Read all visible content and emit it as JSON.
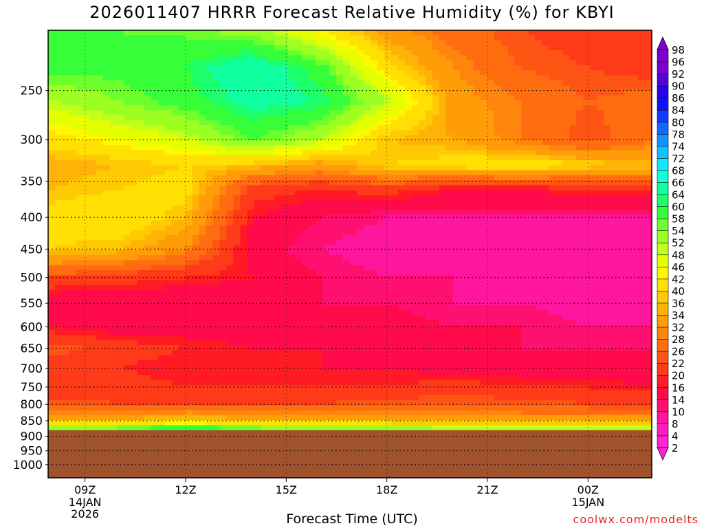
{
  "page": {
    "title": "2026011407 HRRR Forecast Relative Humidity (%) for KBYI",
    "credit": "coolwx.com/modelts"
  },
  "colors": {
    "ground": "#a0522d",
    "scale": [
      "#ff22d8",
      "#ff1cbc",
      "#ff169e",
      "#ff1070",
      "#ff0a4a",
      "#ff1a24",
      "#ff3a18",
      "#ff5514",
      "#ff6d10",
      "#ff850c",
      "#ff9c08",
      "#ffb306",
      "#ffca04",
      "#ffe002",
      "#fff800",
      "#e6ff00",
      "#c2ff1a",
      "#9cff22",
      "#6cff2c",
      "#36ff3a",
      "#1cff6a",
      "#10ffa0",
      "#10ffd8",
      "#10e8ff",
      "#10c0ff",
      "#1094ff",
      "#1068ff",
      "#103cff",
      "#1010ff",
      "#2a00ee",
      "#5400d8",
      "#7e00d0"
    ]
  },
  "chart_data": {
    "type": "heatmap",
    "title": "2026011407 HRRR Forecast Relative Humidity (%) for KBYI",
    "xlabel": "Forecast Time (UTC)",
    "ylabel": "",
    "x_ticks": [
      {
        "value": 9,
        "label": "09Z",
        "sub": [
          "14JAN",
          "2026"
        ]
      },
      {
        "value": 12,
        "label": "12Z",
        "sub": []
      },
      {
        "value": 15,
        "label": "15Z",
        "sub": []
      },
      {
        "value": 18,
        "label": "18Z",
        "sub": []
      },
      {
        "value": 21,
        "label": "21Z",
        "sub": []
      },
      {
        "value": 24,
        "label": "00Z",
        "sub": [
          "15JAN"
        ]
      }
    ],
    "xlim": [
      7.9,
      25.9
    ],
    "y_ticks": [
      250,
      300,
      350,
      400,
      450,
      500,
      550,
      600,
      650,
      700,
      750,
      800,
      850,
      900,
      950,
      1000
    ],
    "ylim": [
      1050,
      200
    ],
    "y_scale": "log",
    "grid": true,
    "surface_pressure": 880,
    "colorbar": {
      "labels": [
        2,
        4,
        8,
        10,
        14,
        16,
        20,
        22,
        26,
        28,
        32,
        34,
        36,
        40,
        42,
        46,
        48,
        52,
        54,
        58,
        60,
        64,
        66,
        68,
        72,
        74,
        78,
        80,
        84,
        86,
        90,
        92,
        96,
        98
      ],
      "extend": "both"
    },
    "times": [
      8,
      10,
      12,
      14,
      16,
      18,
      20,
      22,
      24,
      26
    ],
    "levels": [
      200,
      230,
      260,
      300,
      330,
      360,
      400,
      450,
      500,
      550,
      600,
      650,
      700,
      750,
      800,
      850,
      870,
      880
    ],
    "values": [
      [
        54,
        54,
        53,
        50,
        40,
        30,
        24,
        20,
        18,
        17
      ],
      [
        56,
        55,
        58,
        64,
        56,
        38,
        28,
        22,
        20,
        18
      ],
      [
        48,
        52,
        56,
        62,
        60,
        48,
        30,
        26,
        22,
        24
      ],
      [
        38,
        42,
        46,
        54,
        48,
        34,
        32,
        26,
        20,
        26
      ],
      [
        32,
        34,
        36,
        34,
        30,
        36,
        38,
        40,
        36,
        34
      ],
      [
        34,
        36,
        38,
        18,
        16,
        18,
        14,
        14,
        16,
        16
      ],
      [
        38,
        40,
        34,
        14,
        10,
        8,
        8,
        8,
        8,
        8
      ],
      [
        36,
        34,
        28,
        12,
        8,
        6,
        6,
        5,
        4,
        4
      ],
      [
        20,
        18,
        16,
        14,
        10,
        8,
        8,
        6,
        4,
        5
      ],
      [
        10,
        10,
        10,
        10,
        10,
        10,
        8,
        8,
        6,
        6
      ],
      [
        14,
        12,
        12,
        12,
        12,
        12,
        10,
        10,
        8,
        8
      ],
      [
        22,
        18,
        16,
        14,
        14,
        12,
        12,
        10,
        10,
        10
      ],
      [
        16,
        16,
        14,
        14,
        14,
        14,
        12,
        12,
        12,
        10
      ],
      [
        16,
        18,
        16,
        16,
        16,
        16,
        18,
        16,
        16,
        14
      ],
      [
        22,
        20,
        20,
        20,
        20,
        22,
        22,
        22,
        20,
        20
      ],
      [
        32,
        34,
        36,
        34,
        32,
        32,
        30,
        30,
        30,
        30
      ],
      [
        46,
        48,
        52,
        48,
        46,
        46,
        44,
        44,
        44,
        44
      ],
      [
        66,
        70,
        72,
        70,
        66,
        64,
        62,
        62,
        60,
        60
      ]
    ]
  }
}
